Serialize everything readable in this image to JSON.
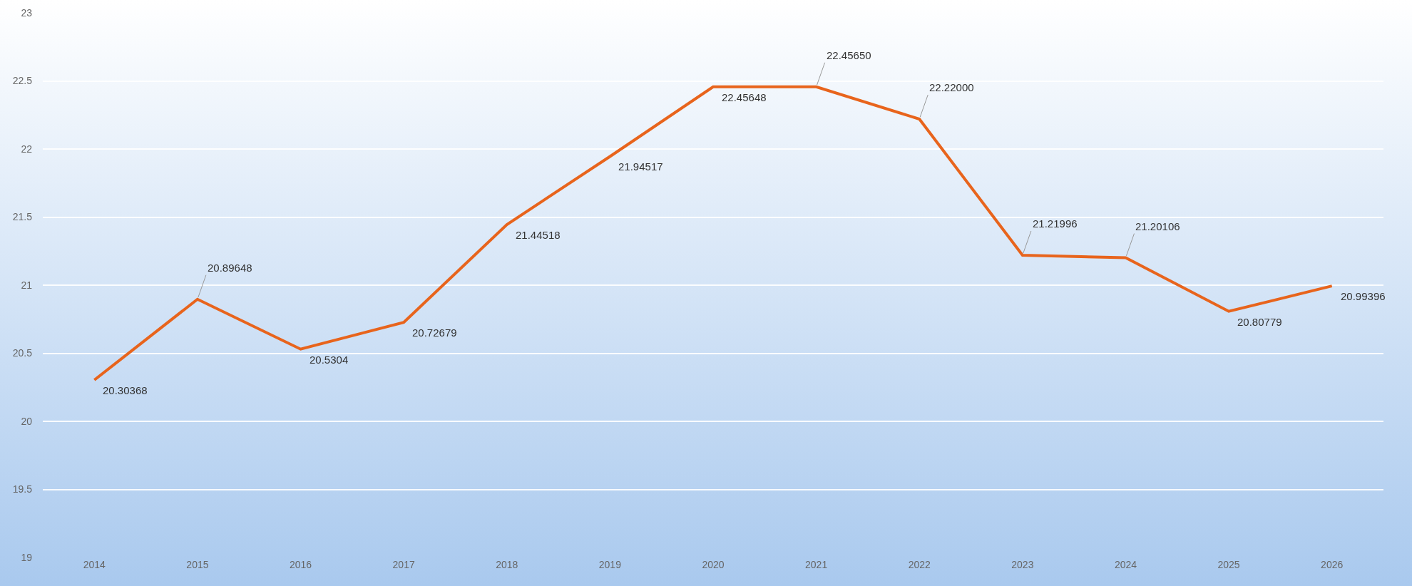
{
  "chart_data": {
    "type": "line",
    "categories": [
      "2014",
      "2015",
      "2016",
      "2017",
      "2018",
      "2019",
      "2020",
      "2021",
      "2022",
      "2023",
      "2024",
      "2025",
      "2026"
    ],
    "series": [
      {
        "color": "#e8641c",
        "values": [
          20.30368,
          20.89648,
          20.5304,
          20.72679,
          21.44518,
          21.94517,
          22.45648,
          22.4565,
          22.22,
          21.21996,
          21.20106,
          20.80779,
          20.99396
        ],
        "value_labels": [
          "20.30368",
          "20.89648",
          "20.5304",
          "20.72679",
          "21.44518",
          "21.94517",
          "22.45648",
          "22.45650",
          "22.22000",
          "21.21996",
          "21.20106",
          "20.80779",
          "20.99396"
        ]
      }
    ],
    "ylim": [
      19,
      23
    ],
    "yticks": [
      19,
      19.5,
      20,
      20.5,
      21,
      21.5,
      22,
      22.5,
      23
    ],
    "grid": "y",
    "marker": "none",
    "line_style": "solid"
  }
}
